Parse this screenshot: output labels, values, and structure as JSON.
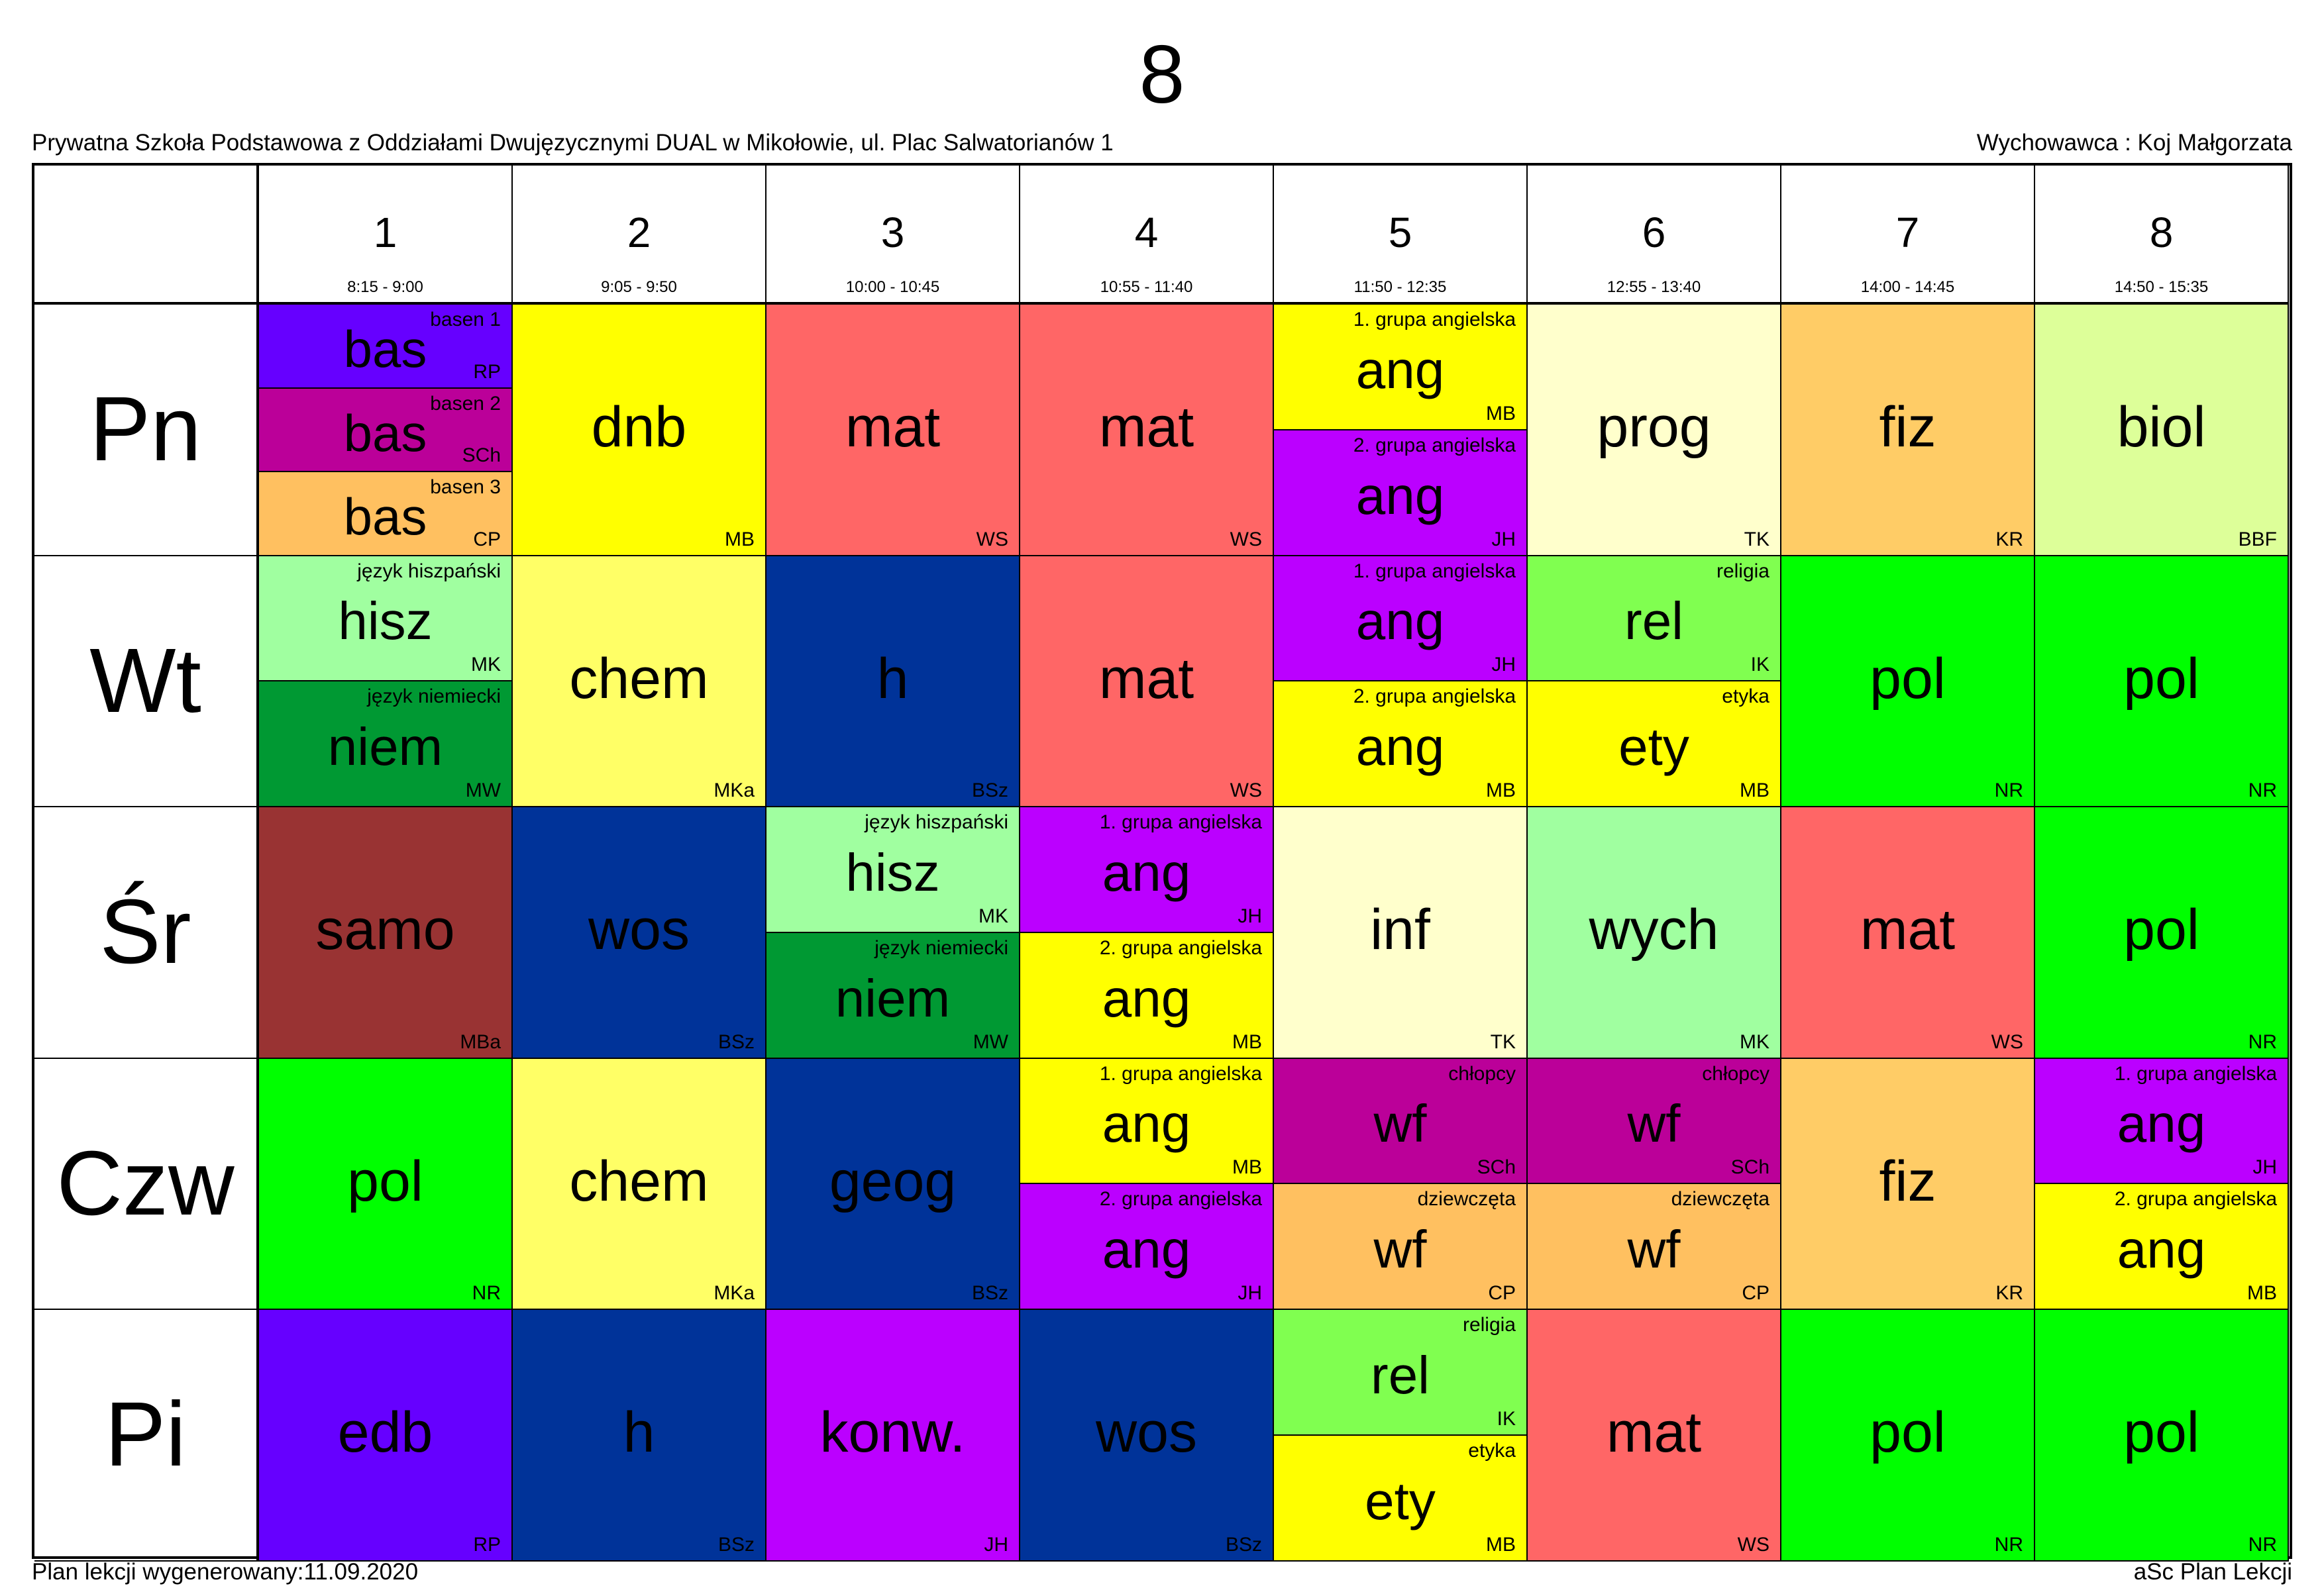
{
  "title": "8",
  "school": "Prywatna Szkoła Podstawowa z Oddziałami Dwujęzycznymi DUAL w Mikołowie, ul. Plac Salwatorianów 1",
  "teacher_label": "Wychowawca : Koj Małgorzata",
  "footer_left": "Plan lekcji wygenerowany:11.09.2020",
  "footer_right": "aSc Plan Lekcji",
  "periods": [
    {
      "num": "1",
      "time": "8:15 - 9:00"
    },
    {
      "num": "2",
      "time": "9:05 - 9:50"
    },
    {
      "num": "3",
      "time": "10:00 - 10:45"
    },
    {
      "num": "4",
      "time": "10:55 - 11:40"
    },
    {
      "num": "5",
      "time": "11:50 - 12:35"
    },
    {
      "num": "6",
      "time": "12:55 - 13:40"
    },
    {
      "num": "7",
      "time": "14:00 - 14:45"
    },
    {
      "num": "8",
      "time": "14:50 - 15:35"
    }
  ],
  "days": [
    {
      "label": "Pn",
      "cells": [
        [
          {
            "subject": "bas",
            "group": "basen 1",
            "teacher": "RP",
            "color": "#6600FF"
          },
          {
            "subject": "bas",
            "group": "basen 2",
            "teacher": "SCh",
            "color": "#BB0099"
          },
          {
            "subject": "bas",
            "group": "basen 3",
            "teacher": "CP",
            "color": "#FFC060"
          }
        ],
        [
          {
            "subject": "dnb",
            "group": "",
            "teacher": "MB",
            "color": "#FFFF00"
          }
        ],
        [
          {
            "subject": "mat",
            "group": "",
            "teacher": "WS",
            "color": "#FF6666"
          }
        ],
        [
          {
            "subject": "mat",
            "group": "",
            "teacher": "WS",
            "color": "#FF6666"
          }
        ],
        [
          {
            "subject": "ang",
            "group": "1. grupa angielska",
            "teacher": "MB",
            "color": "#FFFF00"
          },
          {
            "subject": "ang",
            "group": "2. grupa angielska",
            "teacher": "JH",
            "color": "#BB00FF"
          }
        ],
        [
          {
            "subject": "prog",
            "group": "",
            "teacher": "TK",
            "color": "#FFFFCC"
          }
        ],
        [
          {
            "subject": "fiz",
            "group": "",
            "teacher": "KR",
            "color": "#FFCC66"
          }
        ],
        [
          {
            "subject": "biol",
            "group": "",
            "teacher": "BBF",
            "color": "#DDFF99"
          }
        ]
      ]
    },
    {
      "label": "Wt",
      "cells": [
        [
          {
            "subject": "hisz",
            "group": "język hiszpański",
            "teacher": "MK",
            "color": "#A0FFA0"
          },
          {
            "subject": "niem",
            "group": "język niemiecki",
            "teacher": "MW",
            "color": "#009933"
          }
        ],
        [
          {
            "subject": "chem",
            "group": "",
            "teacher": "MKa",
            "color": "#FFFF66"
          }
        ],
        [
          {
            "subject": "h",
            "group": "",
            "teacher": "BSz",
            "color": "#003399"
          }
        ],
        [
          {
            "subject": "mat",
            "group": "",
            "teacher": "WS",
            "color": "#FF6666"
          }
        ],
        [
          {
            "subject": "ang",
            "group": "1. grupa angielska",
            "teacher": "JH",
            "color": "#BB00FF"
          },
          {
            "subject": "ang",
            "group": "2. grupa angielska",
            "teacher": "MB",
            "color": "#FFFF00"
          }
        ],
        [
          {
            "subject": "rel",
            "group": "religia",
            "teacher": "IK",
            "color": "#80FF50"
          },
          {
            "subject": "ety",
            "group": "etyka",
            "teacher": "MB",
            "color": "#FFFF00"
          }
        ],
        [
          {
            "subject": "pol",
            "group": "",
            "teacher": "NR",
            "color": "#00FF00"
          }
        ],
        [
          {
            "subject": "pol",
            "group": "",
            "teacher": "NR",
            "color": "#00FF00"
          }
        ]
      ]
    },
    {
      "label": "Śr",
      "cells": [
        [
          {
            "subject": "samo",
            "group": "",
            "teacher": "MBa",
            "color": "#993333"
          }
        ],
        [
          {
            "subject": "wos",
            "group": "",
            "teacher": "BSz",
            "color": "#003399"
          }
        ],
        [
          {
            "subject": "hisz",
            "group": "język hiszpański",
            "teacher": "MK",
            "color": "#A0FFA0"
          },
          {
            "subject": "niem",
            "group": "język niemiecki",
            "teacher": "MW",
            "color": "#009933"
          }
        ],
        [
          {
            "subject": "ang",
            "group": "1. grupa angielska",
            "teacher": "JH",
            "color": "#BB00FF"
          },
          {
            "subject": "ang",
            "group": "2. grupa angielska",
            "teacher": "MB",
            "color": "#FFFF00"
          }
        ],
        [
          {
            "subject": "inf",
            "group": "",
            "teacher": "TK",
            "color": "#FFFFCC"
          }
        ],
        [
          {
            "subject": "wych",
            "group": "",
            "teacher": "MK",
            "color": "#A0FFA0"
          }
        ],
        [
          {
            "subject": "mat",
            "group": "",
            "teacher": "WS",
            "color": "#FF6666"
          }
        ],
        [
          {
            "subject": "pol",
            "group": "",
            "teacher": "NR",
            "color": "#00FF00"
          }
        ]
      ]
    },
    {
      "label": "Czw",
      "cells": [
        [
          {
            "subject": "pol",
            "group": "",
            "teacher": "NR",
            "color": "#00FF00"
          }
        ],
        [
          {
            "subject": "chem",
            "group": "",
            "teacher": "MKa",
            "color": "#FFFF66"
          }
        ],
        [
          {
            "subject": "geog",
            "group": "",
            "teacher": "BSz",
            "color": "#003399"
          }
        ],
        [
          {
            "subject": "ang",
            "group": "1. grupa angielska",
            "teacher": "MB",
            "color": "#FFFF00"
          },
          {
            "subject": "ang",
            "group": "2. grupa angielska",
            "teacher": "JH",
            "color": "#BB00FF"
          }
        ],
        [
          {
            "subject": "wf",
            "group": "chłopcy",
            "teacher": "SCh",
            "color": "#BB0099"
          },
          {
            "subject": "wf",
            "group": "dziewczęta",
            "teacher": "CP",
            "color": "#FFC060"
          }
        ],
        [
          {
            "subject": "wf",
            "group": "chłopcy",
            "teacher": "SCh",
            "color": "#BB0099"
          },
          {
            "subject": "wf",
            "group": "dziewczęta",
            "teacher": "CP",
            "color": "#FFC060"
          }
        ],
        [
          {
            "subject": "fiz",
            "group": "",
            "teacher": "KR",
            "color": "#FFCC66"
          }
        ],
        [
          {
            "subject": "ang",
            "group": "1. grupa angielska",
            "teacher": "JH",
            "color": "#BB00FF"
          },
          {
            "subject": "ang",
            "group": "2. grupa angielska",
            "teacher": "MB",
            "color": "#FFFF00"
          }
        ]
      ]
    },
    {
      "label": "Pi",
      "cells": [
        [
          {
            "subject": "edb",
            "group": "",
            "teacher": "RP",
            "color": "#6600FF"
          }
        ],
        [
          {
            "subject": "h",
            "group": "",
            "teacher": "BSz",
            "color": "#003399"
          }
        ],
        [
          {
            "subject": "konw.",
            "group": "",
            "teacher": "JH",
            "color": "#BB00FF"
          }
        ],
        [
          {
            "subject": "wos",
            "group": "",
            "teacher": "BSz",
            "color": "#003399"
          }
        ],
        [
          {
            "subject": "rel",
            "group": "religia",
            "teacher": "IK",
            "color": "#80FF50"
          },
          {
            "subject": "ety",
            "group": "etyka",
            "teacher": "MB",
            "color": "#FFFF00"
          }
        ],
        [
          {
            "subject": "mat",
            "group": "",
            "teacher": "WS",
            "color": "#FF6666"
          }
        ],
        [
          {
            "subject": "pol",
            "group": "",
            "teacher": "NR",
            "color": "#00FF00"
          }
        ],
        [
          {
            "subject": "pol",
            "group": "",
            "teacher": "NR",
            "color": "#00FF00"
          }
        ]
      ]
    }
  ]
}
